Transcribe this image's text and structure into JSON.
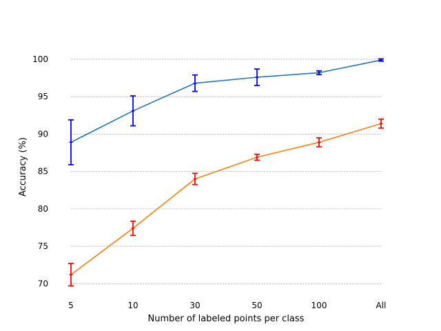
{
  "chart_data": {
    "type": "line",
    "title": "",
    "xlabel": "Number of labeled points per class",
    "ylabel": "Accuracy (%)",
    "categories": [
      "5",
      "10",
      "30",
      "50",
      "100",
      "All"
    ],
    "ylim": [
      68,
      103.5
    ],
    "yticks": [
      70,
      75,
      80,
      85,
      90,
      95,
      100
    ],
    "grid": "horizontal dashed",
    "legend": "none",
    "series": [
      {
        "values": [
          88.9,
          93.1,
          96.8,
          97.6,
          98.2,
          99.9
        ],
        "err": [
          3.0,
          2.0,
          1.1,
          1.1,
          0.25,
          0.15
        ],
        "line_color": "#1f77b4",
        "errorbar_color": "#0000ff"
      },
      {
        "values": [
          71.2,
          77.4,
          84.0,
          86.9,
          88.9,
          91.4
        ],
        "err": [
          1.5,
          0.95,
          0.75,
          0.4,
          0.6,
          0.6
        ],
        "line_color": "#ff7f0e",
        "errorbar_color": "#ff0000"
      }
    ]
  }
}
